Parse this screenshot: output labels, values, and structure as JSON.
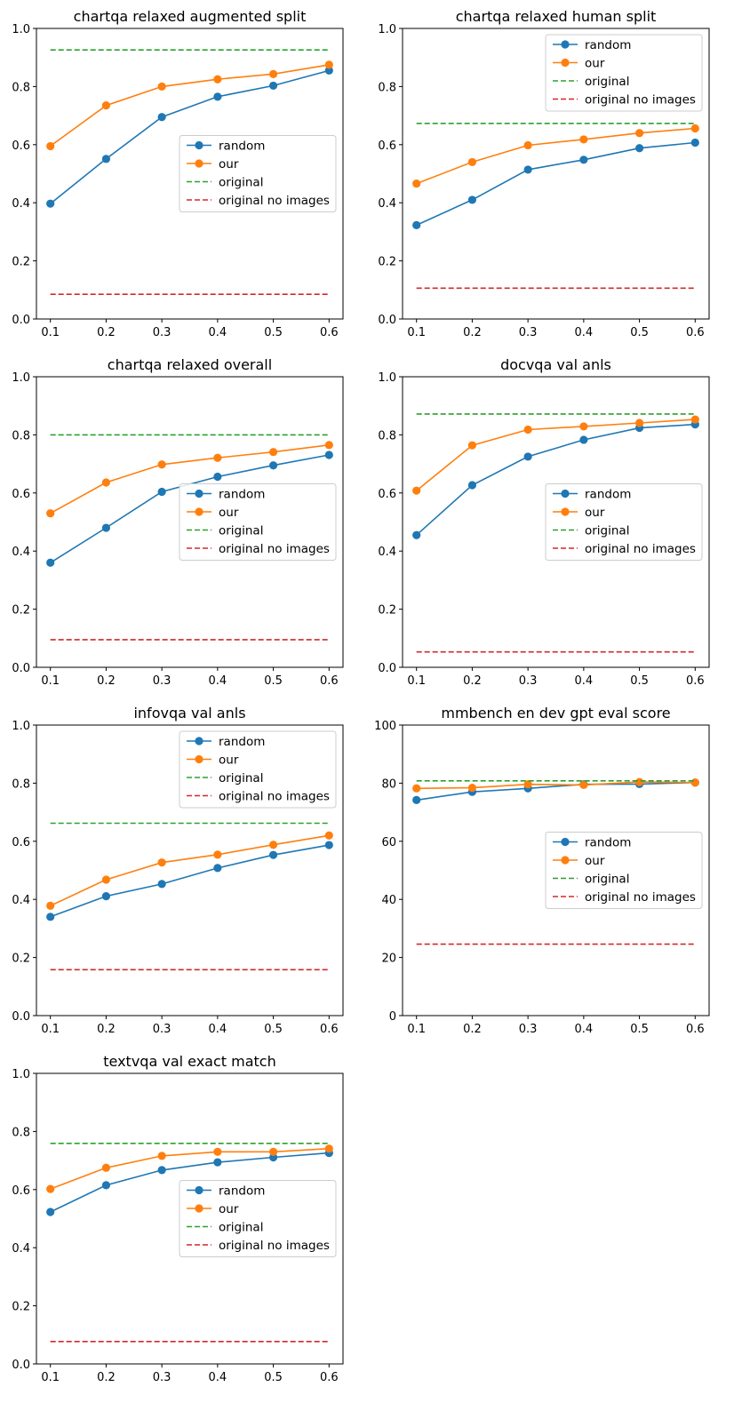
{
  "colors": {
    "random": "#1f77b4",
    "our": "#ff7f0e",
    "original": "#2ca02c",
    "original_no_images": "#d62728"
  },
  "legend_labels": [
    "random",
    "our",
    "original",
    "original no images"
  ],
  "chart_data": [
    {
      "type": "line",
      "title": "chartqa relaxed augmented split",
      "x": [
        0.1,
        0.2,
        0.3,
        0.4,
        0.5,
        0.6
      ],
      "xticks": [
        "0.1",
        "0.2",
        "0.3",
        "0.4",
        "0.5",
        "0.6"
      ],
      "ylim": [
        0,
        1
      ],
      "yticks": [
        "0.0",
        "0.2",
        "0.4",
        "0.6",
        "0.8",
        "1.0"
      ],
      "legend": "center-right",
      "series": [
        {
          "name": "random",
          "values": [
            0.397,
            0.551,
            0.695,
            0.765,
            0.803,
            0.855
          ]
        },
        {
          "name": "our",
          "values": [
            0.595,
            0.735,
            0.8,
            0.825,
            0.843,
            0.875
          ]
        },
        {
          "name": "original",
          "values": [
            0.926,
            0.926,
            0.926,
            0.926,
            0.926,
            0.926
          ]
        },
        {
          "name": "original no images",
          "values": [
            0.085,
            0.085,
            0.085,
            0.085,
            0.085,
            0.085
          ]
        }
      ]
    },
    {
      "type": "line",
      "title": "chartqa relaxed human split",
      "x": [
        0.1,
        0.2,
        0.3,
        0.4,
        0.5,
        0.6
      ],
      "xticks": [
        "0.1",
        "0.2",
        "0.3",
        "0.4",
        "0.5",
        "0.6"
      ],
      "ylim": [
        0,
        1
      ],
      "yticks": [
        "0.0",
        "0.2",
        "0.4",
        "0.6",
        "0.8",
        "1.0"
      ],
      "legend": "upper-right",
      "series": [
        {
          "name": "random",
          "values": [
            0.323,
            0.41,
            0.514,
            0.548,
            0.588,
            0.607
          ]
        },
        {
          "name": "our",
          "values": [
            0.466,
            0.54,
            0.598,
            0.618,
            0.64,
            0.656
          ]
        },
        {
          "name": "original",
          "values": [
            0.673,
            0.673,
            0.673,
            0.673,
            0.673,
            0.673
          ]
        },
        {
          "name": "original no images",
          "values": [
            0.106,
            0.106,
            0.106,
            0.106,
            0.106,
            0.106
          ]
        }
      ]
    },
    {
      "type": "line",
      "title": "chartqa relaxed overall",
      "x": [
        0.1,
        0.2,
        0.3,
        0.4,
        0.5,
        0.6
      ],
      "xticks": [
        "0.1",
        "0.2",
        "0.3",
        "0.4",
        "0.5",
        "0.6"
      ],
      "ylim": [
        0,
        1
      ],
      "yticks": [
        "0.0",
        "0.2",
        "0.4",
        "0.6",
        "0.8",
        "1.0"
      ],
      "legend": "center-right",
      "series": [
        {
          "name": "random",
          "values": [
            0.36,
            0.48,
            0.604,
            0.656,
            0.695,
            0.731
          ]
        },
        {
          "name": "our",
          "values": [
            0.53,
            0.636,
            0.698,
            0.721,
            0.741,
            0.765
          ]
        },
        {
          "name": "original",
          "values": [
            0.8,
            0.8,
            0.8,
            0.8,
            0.8,
            0.8
          ]
        },
        {
          "name": "original no images",
          "values": [
            0.095,
            0.095,
            0.095,
            0.095,
            0.095,
            0.095
          ]
        }
      ]
    },
    {
      "type": "line",
      "title": "docvqa val anls",
      "x": [
        0.1,
        0.2,
        0.3,
        0.4,
        0.5,
        0.6
      ],
      "xticks": [
        "0.1",
        "0.2",
        "0.3",
        "0.4",
        "0.5",
        "0.6"
      ],
      "ylim": [
        0,
        1
      ],
      "yticks": [
        "0.0",
        "0.2",
        "0.4",
        "0.6",
        "0.8",
        "1.0"
      ],
      "legend": "center-right",
      "series": [
        {
          "name": "random",
          "values": [
            0.455,
            0.627,
            0.725,
            0.783,
            0.824,
            0.836
          ]
        },
        {
          "name": "our",
          "values": [
            0.608,
            0.764,
            0.818,
            0.829,
            0.841,
            0.853
          ]
        },
        {
          "name": "original",
          "values": [
            0.872,
            0.872,
            0.872,
            0.872,
            0.872,
            0.872
          ]
        },
        {
          "name": "original no images",
          "values": [
            0.053,
            0.053,
            0.053,
            0.053,
            0.053,
            0.053
          ]
        }
      ]
    },
    {
      "type": "line",
      "title": "infovqa val anls",
      "x": [
        0.1,
        0.2,
        0.3,
        0.4,
        0.5,
        0.6
      ],
      "xticks": [
        "0.1",
        "0.2",
        "0.3",
        "0.4",
        "0.5",
        "0.6"
      ],
      "ylim": [
        0,
        1
      ],
      "yticks": [
        "0.0",
        "0.2",
        "0.4",
        "0.6",
        "0.8",
        "1.0"
      ],
      "legend": "upper-right",
      "series": [
        {
          "name": "random",
          "values": [
            0.34,
            0.411,
            0.453,
            0.508,
            0.553,
            0.587
          ]
        },
        {
          "name": "our",
          "values": [
            0.378,
            0.468,
            0.527,
            0.554,
            0.588,
            0.62
          ]
        },
        {
          "name": "original",
          "values": [
            0.662,
            0.662,
            0.662,
            0.662,
            0.662,
            0.662
          ]
        },
        {
          "name": "original no images",
          "values": [
            0.158,
            0.158,
            0.158,
            0.158,
            0.158,
            0.158
          ]
        }
      ]
    },
    {
      "type": "line",
      "title": "mmbench en dev gpt eval score",
      "x": [
        0.1,
        0.2,
        0.3,
        0.4,
        0.5,
        0.6
      ],
      "xticks": [
        "0.1",
        "0.2",
        "0.3",
        "0.4",
        "0.5",
        "0.6"
      ],
      "ylim": [
        0,
        100
      ],
      "yticks": [
        "0",
        "20",
        "40",
        "60",
        "80",
        "100"
      ],
      "legend": "center-right",
      "series": [
        {
          "name": "random",
          "values": [
            74.2,
            77.0,
            78.2,
            79.6,
            79.7,
            80.2
          ]
        },
        {
          "name": "our",
          "values": [
            78.2,
            78.4,
            79.6,
            79.4,
            80.4,
            80.2
          ]
        },
        {
          "name": "original",
          "values": [
            80.8,
            80.8,
            80.8,
            80.8,
            80.8,
            80.8
          ]
        },
        {
          "name": "original no images",
          "values": [
            24.6,
            24.6,
            24.6,
            24.6,
            24.6,
            24.6
          ]
        }
      ]
    },
    {
      "type": "line",
      "title": "textvqa val exact match",
      "x": [
        0.1,
        0.2,
        0.3,
        0.4,
        0.5,
        0.6
      ],
      "xticks": [
        "0.1",
        "0.2",
        "0.3",
        "0.4",
        "0.5",
        "0.6"
      ],
      "ylim": [
        0,
        1
      ],
      "yticks": [
        "0.0",
        "0.2",
        "0.4",
        "0.6",
        "0.8",
        "1.0"
      ],
      "legend": "center-right",
      "series": [
        {
          "name": "random",
          "values": [
            0.523,
            0.615,
            0.667,
            0.694,
            0.711,
            0.726
          ]
        },
        {
          "name": "our",
          "values": [
            0.602,
            0.675,
            0.716,
            0.73,
            0.73,
            0.741
          ]
        },
        {
          "name": "original",
          "values": [
            0.759,
            0.759,
            0.759,
            0.759,
            0.759,
            0.759
          ]
        },
        {
          "name": "original no images",
          "values": [
            0.077,
            0.077,
            0.077,
            0.077,
            0.077,
            0.077
          ]
        }
      ]
    }
  ]
}
